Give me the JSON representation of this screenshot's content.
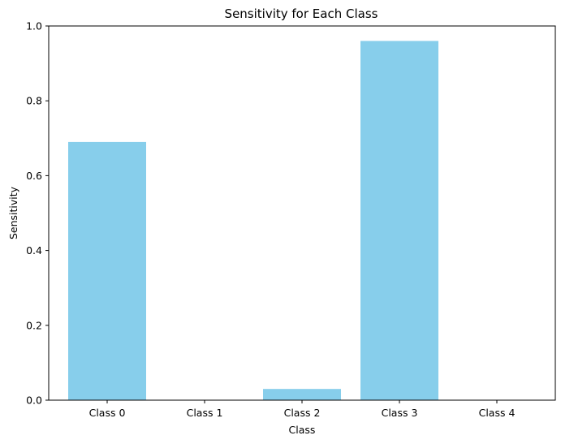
{
  "chart_data": {
    "type": "bar",
    "title": "Sensitivity for Each Class",
    "xlabel": "Class",
    "ylabel": "Sensitivity",
    "categories": [
      "Class 0",
      "Class 1",
      "Class 2",
      "Class 3",
      "Class 4"
    ],
    "values": [
      0.69,
      0.0,
      0.03,
      0.96,
      0.0
    ],
    "ylim": [
      0,
      1.0
    ],
    "yticks": [
      "0.0",
      "0.2",
      "0.4",
      "0.6",
      "0.8",
      "1.0"
    ],
    "ytick_values": [
      0.0,
      0.2,
      0.4,
      0.6,
      0.8,
      1.0
    ],
    "bar_color": "#87ceeb",
    "grid": false,
    "legend": "none"
  }
}
